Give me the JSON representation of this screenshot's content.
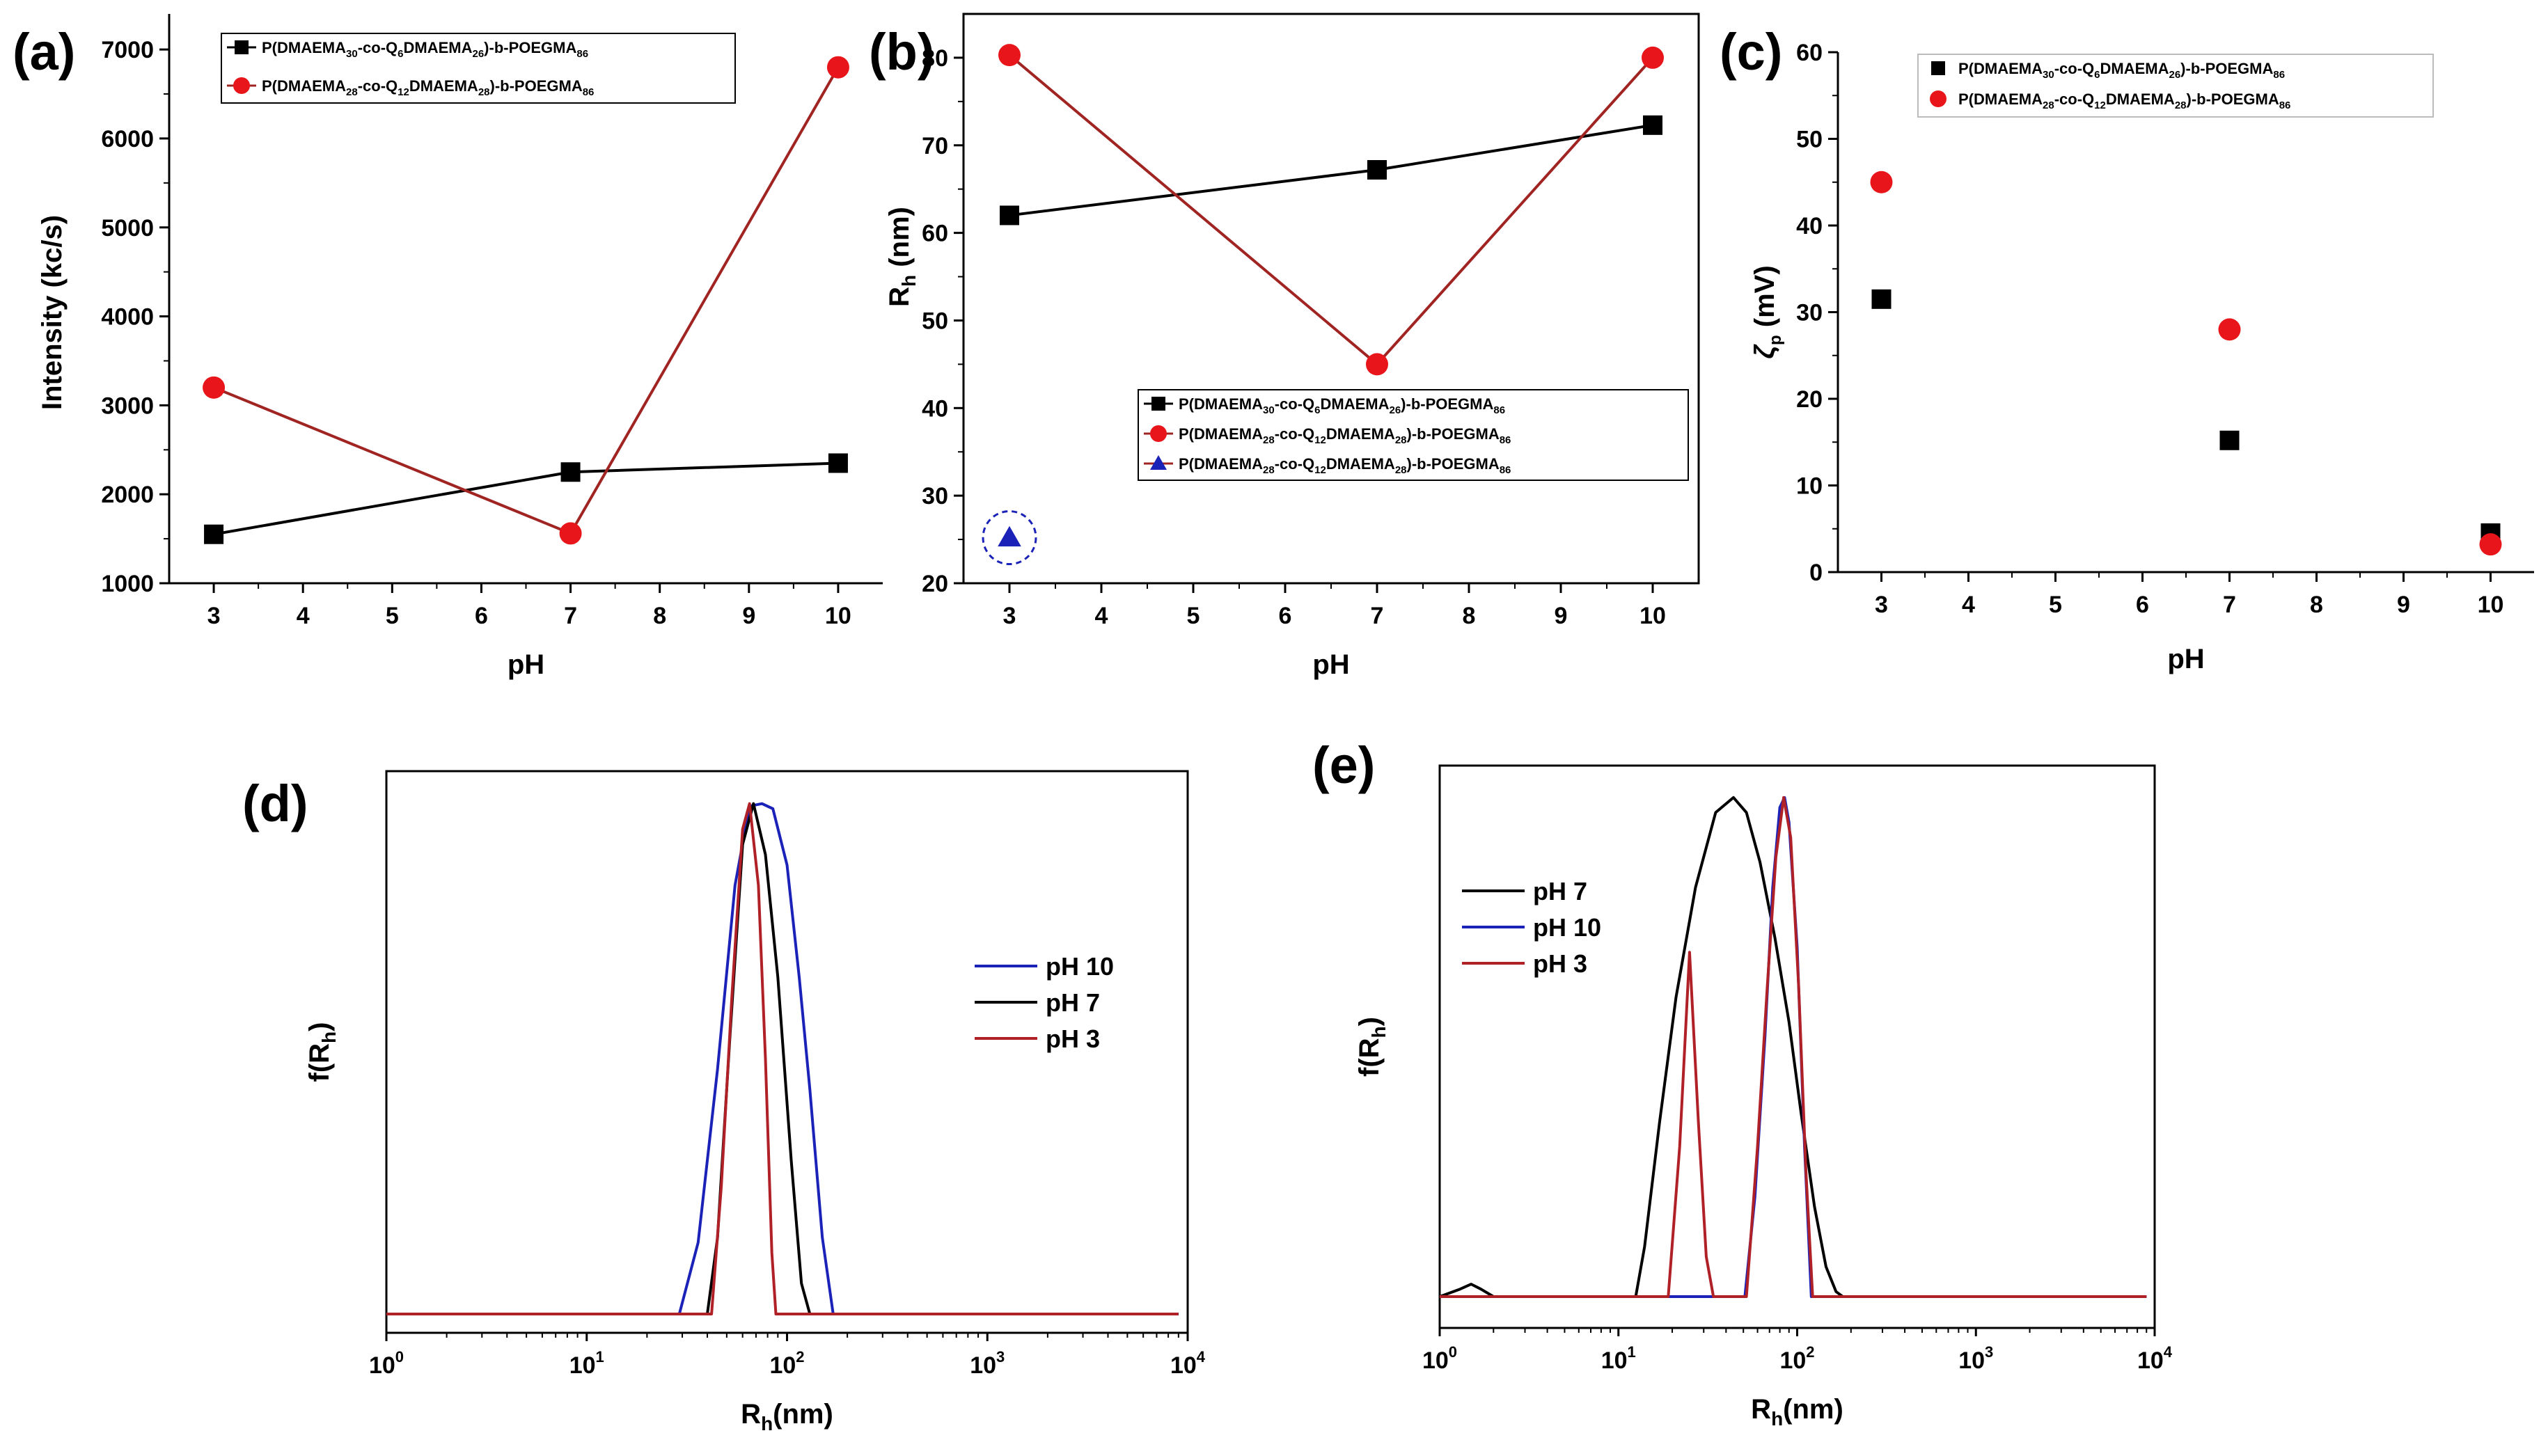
{
  "colors": {
    "black": "#000000",
    "red": "#e8161b",
    "redline": "#a02422",
    "blue": "#1b22b8",
    "darkred": "#b02127"
  },
  "chart_data": [
    {
      "panel": "(a)",
      "type": "line",
      "xlabel": "pH",
      "ylabel": "Intensity (kc/s)",
      "xlim": [
        2.5,
        10.5
      ],
      "ylim": [
        1000,
        7400
      ],
      "xticks": [
        "3",
        "4",
        "5",
        "6",
        "7",
        "8",
        "9",
        "10"
      ],
      "yticks": [
        "1000",
        "2000",
        "3000",
        "4000",
        "5000",
        "6000",
        "7000"
      ],
      "legend": "top-left",
      "series": [
        {
          "name": "P(DMAEMA30-co-Q6DMAEMA26)-b-POEGMA86",
          "marker": "square",
          "x": [
            3,
            7,
            10
          ],
          "y": [
            1550,
            2250,
            2350
          ]
        },
        {
          "name": "P(DMAEMA28-co-Q12DMAEMA28)-b-POEGMA86",
          "marker": "circle",
          "x": [
            3,
            7,
            10
          ],
          "y": [
            3200,
            1560,
            6800
          ]
        }
      ]
    },
    {
      "panel": "(b)",
      "type": "line",
      "xlabel": "pH",
      "ylabel": "Rh (nm)",
      "xlim": [
        2.5,
        10.5
      ],
      "ylim": [
        20,
        85
      ],
      "xticks": [
        "3",
        "4",
        "5",
        "6",
        "7",
        "8",
        "9",
        "10"
      ],
      "yticks": [
        "20",
        "30",
        "40",
        "50",
        "60",
        "70",
        "80"
      ],
      "legend": "center-right",
      "series": [
        {
          "name": "P(DMAEMA30-co-Q6DMAEMA26)-b-POEGMA86",
          "marker": "square",
          "x": [
            3,
            7,
            10
          ],
          "y": [
            62,
            67.2,
            72.3
          ]
        },
        {
          "name": "P(DMAEMA28-co-Q12DMAEMA28)-b-POEGMA86",
          "marker": "circle",
          "x": [
            3,
            7,
            10
          ],
          "y": [
            80.3,
            45,
            80
          ]
        },
        {
          "name": "P(DMAEMA28-co-Q12DMAEMA28)-b-POEGMA86",
          "marker": "triangle",
          "x": [
            3
          ],
          "y": [
            25.2
          ]
        }
      ]
    },
    {
      "panel": "(c)",
      "type": "scatter",
      "xlabel": "pH",
      "ylabel": "ζp (mV)",
      "xlim": [
        2.5,
        10.5
      ],
      "ylim": [
        0,
        60
      ],
      "xticks": [
        "3",
        "4",
        "5",
        "6",
        "7",
        "8",
        "9",
        "10"
      ],
      "yticks": [
        "0",
        "10",
        "20",
        "30",
        "40",
        "50",
        "60"
      ],
      "legend": "top-left",
      "series": [
        {
          "name": "P(DMAEMA30-co-Q6DMAEMA26)-b-POEGMA86",
          "marker": "square",
          "x": [
            3,
            7,
            10
          ],
          "y": [
            31.5,
            15.2,
            4.5
          ]
        },
        {
          "name": "P(DMAEMA28-co-Q12DMAEMA28)-b-POEGMA86",
          "marker": "circle",
          "x": [
            3,
            7,
            10
          ],
          "y": [
            45,
            28,
            3.2
          ]
        }
      ]
    },
    {
      "panel": "(d)",
      "type": "line",
      "xscale": "log",
      "xlabel": "Rh(nm)",
      "ylabel": "f(Rh)",
      "xlim": [
        1,
        10000
      ],
      "ylim": [
        0,
        1.05
      ],
      "legend": "center-right",
      "series": [
        {
          "name": "pH 10",
          "x": [
            1,
            29,
            36,
            45,
            55,
            65,
            75,
            85,
            100,
            115,
            130,
            150,
            170,
            9000
          ],
          "y": [
            0,
            0,
            0.14,
            0.48,
            0.84,
            0.995,
            1.0,
            0.99,
            0.88,
            0.66,
            0.44,
            0.15,
            0,
            0
          ]
        },
        {
          "name": "pH 7",
          "x": [
            1,
            40,
            45,
            52,
            60,
            68,
            78,
            90,
            105,
            118,
            130,
            9000
          ],
          "y": [
            0,
            0,
            0.15,
            0.55,
            0.92,
            1.0,
            0.9,
            0.66,
            0.3,
            0.06,
            0,
            0
          ]
        },
        {
          "name": "pH 3",
          "x": [
            1,
            42,
            47,
            53,
            60,
            65,
            72,
            78,
            84,
            88,
            9000
          ],
          "y": [
            0,
            0,
            0.25,
            0.62,
            0.95,
            1.0,
            0.84,
            0.5,
            0.12,
            0,
            0
          ]
        }
      ]
    },
    {
      "panel": "(e)",
      "type": "line",
      "xscale": "log",
      "xlabel": "Rh(nm)",
      "ylabel": "f(Rh)",
      "xlim": [
        1,
        10000
      ],
      "ylim": [
        0,
        1.05
      ],
      "legend": "top-left",
      "series": [
        {
          "name": "pH 7",
          "x": [
            1,
            1.3,
            1.5,
            1.7,
            2,
            12.5,
            14,
            17,
            21,
            27,
            35,
            44,
            52,
            62,
            75,
            90,
            105,
            125,
            145,
            165,
            180,
            9000
          ],
          "y": [
            0,
            0.015,
            0.025,
            0.015,
            0,
            0,
            0.1,
            0.35,
            0.6,
            0.82,
            0.97,
            1.0,
            0.97,
            0.87,
            0.72,
            0.55,
            0.37,
            0.18,
            0.06,
            0.01,
            0,
            0
          ]
        },
        {
          "name": "pH 10",
          "x": [
            1,
            51,
            58,
            66,
            73,
            80,
            85,
            90,
            100,
            110,
            120,
            9000
          ],
          "y": [
            0,
            0,
            0.2,
            0.52,
            0.82,
            0.98,
            1.0,
            0.95,
            0.7,
            0.3,
            0,
            0
          ]
        },
        {
          "name": "pH 3",
          "x": [
            1,
            19,
            22,
            25,
            28,
            31,
            34,
            52,
            60,
            68,
            76,
            84,
            92,
            102,
            112,
            122,
            9000
          ],
          "y": [
            0,
            0,
            0.3,
            0.69,
            0.35,
            0.08,
            0,
            0,
            0.3,
            0.62,
            0.88,
            1.0,
            0.92,
            0.62,
            0.25,
            0,
            0
          ]
        }
      ]
    }
  ]
}
